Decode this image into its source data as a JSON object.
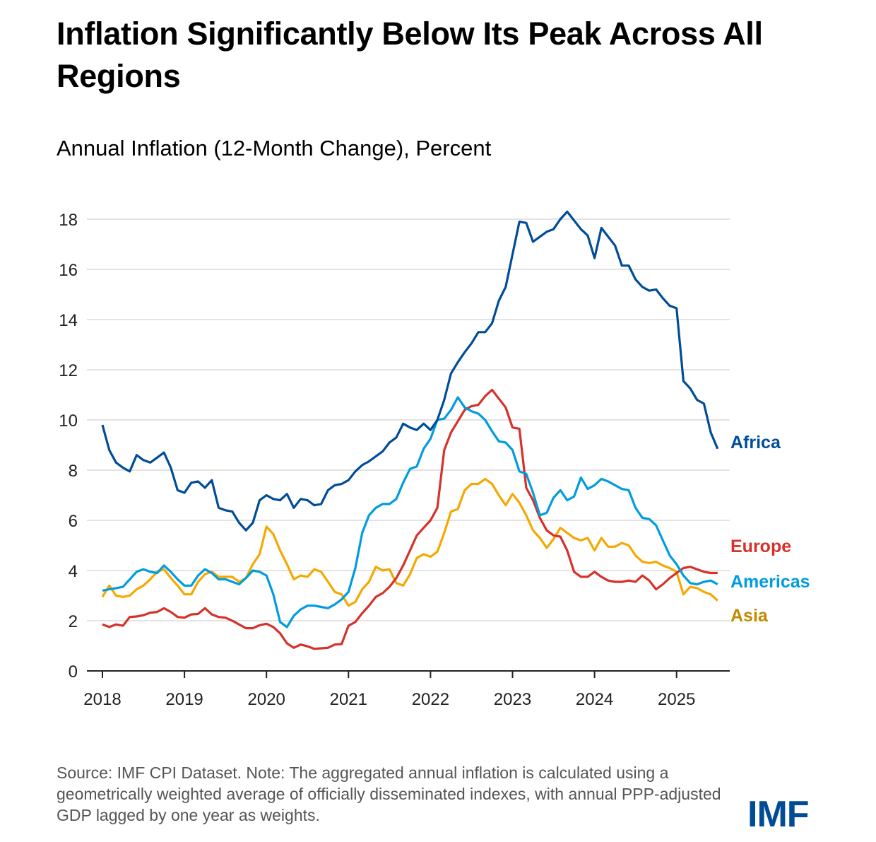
{
  "title": "Inflation Significantly Below Its Peak Across All Regions",
  "subtitle": "Annual Inflation (12-Month Change), Percent",
  "note": "Source: IMF CPI Dataset. Note: The aggregated annual inflation is calculated using a geometrically weighted average of officially disseminated indexes, with annual PPP-adjusted GDP lagged by one year as weights.",
  "logo": "IMF",
  "chart_data": {
    "type": "line",
    "title": "Inflation Significantly Below Its Peak Across All Regions",
    "ylabel": "Annual Inflation (12-Month Change), Percent",
    "x_start": "2018-01",
    "x_end": "2025-07",
    "frequency": "monthly",
    "xticks": [
      "2018",
      "2019",
      "2020",
      "2021",
      "2022",
      "2023",
      "2024",
      "2025"
    ],
    "yticks": [
      0,
      2,
      4,
      6,
      8,
      10,
      12,
      14,
      16,
      18
    ],
    "ylim": [
      0,
      18.5
    ],
    "grid": "horizontal",
    "legend": "direct labels right",
    "series": [
      {
        "name": "Africa",
        "color": "#004C97",
        "values": [
          9.8,
          8.8,
          8.3,
          8.1,
          7.95,
          8.6,
          8.4,
          8.3,
          8.5,
          8.7,
          8.1,
          7.2,
          7.1,
          7.5,
          7.55,
          7.3,
          7.6,
          6.5,
          6.4,
          6.35,
          5.9,
          5.6,
          5.9,
          6.8,
          7.0,
          6.85,
          6.8,
          7.05,
          6.5,
          6.85,
          6.8,
          6.6,
          6.65,
          7.2,
          7.4,
          7.45,
          7.6,
          7.95,
          8.2,
          8.35,
          8.55,
          8.75,
          9.1,
          9.3,
          9.85,
          9.7,
          9.6,
          9.85,
          9.6,
          10.0,
          10.8,
          11.85,
          12.3,
          12.7,
          13.05,
          13.5,
          13.5,
          13.85,
          14.75,
          15.3,
          16.6,
          17.9,
          17.85,
          17.1,
          17.3,
          17.5,
          17.6,
          18.0,
          18.3,
          17.95,
          17.6,
          17.35,
          16.45,
          17.65,
          17.3,
          16.95,
          16.15,
          16.15,
          15.6,
          15.3,
          15.15,
          15.2,
          14.85,
          14.55,
          14.45,
          11.55,
          11.25,
          10.8,
          10.65,
          9.5,
          8.85
        ]
      },
      {
        "name": "Europe",
        "color": "#D6312A",
        "values": [
          1.85,
          1.75,
          1.85,
          1.8,
          2.15,
          2.17,
          2.22,
          2.32,
          2.35,
          2.5,
          2.35,
          2.15,
          2.12,
          2.25,
          2.27,
          2.5,
          2.25,
          2.15,
          2.12,
          2.0,
          1.85,
          1.7,
          1.7,
          1.82,
          1.88,
          1.75,
          1.5,
          1.1,
          0.92,
          1.05,
          0.98,
          0.88,
          0.9,
          0.92,
          1.05,
          1.07,
          1.8,
          1.95,
          2.3,
          2.6,
          2.95,
          3.1,
          3.35,
          3.7,
          4.2,
          4.8,
          5.4,
          5.7,
          6.0,
          6.5,
          8.8,
          9.5,
          9.95,
          10.4,
          10.55,
          10.6,
          10.95,
          11.2,
          10.85,
          10.5,
          9.7,
          9.65,
          7.3,
          6.8,
          6.1,
          5.6,
          5.4,
          5.35,
          4.8,
          3.95,
          3.75,
          3.75,
          3.95,
          3.75,
          3.6,
          3.55,
          3.55,
          3.6,
          3.55,
          3.8,
          3.6,
          3.25,
          3.45,
          3.7,
          3.9,
          4.1,
          4.15,
          4.05,
          3.95,
          3.9,
          3.9
        ]
      },
      {
        "name": "Americas",
        "color": "#009CDE",
        "values": [
          3.2,
          3.25,
          3.3,
          3.35,
          3.65,
          3.95,
          4.05,
          3.95,
          3.9,
          4.2,
          3.95,
          3.65,
          3.4,
          3.4,
          3.8,
          4.05,
          3.9,
          3.65,
          3.65,
          3.55,
          3.45,
          3.7,
          4.0,
          3.95,
          3.8,
          3.05,
          1.95,
          1.75,
          2.2,
          2.45,
          2.6,
          2.6,
          2.55,
          2.5,
          2.65,
          2.85,
          3.15,
          4.1,
          5.5,
          6.2,
          6.5,
          6.65,
          6.65,
          6.85,
          7.5,
          8.05,
          8.15,
          8.85,
          9.25,
          10.0,
          10.05,
          10.4,
          10.9,
          10.5,
          10.35,
          10.25,
          10.0,
          9.55,
          9.15,
          9.1,
          8.8,
          7.95,
          7.85,
          7.1,
          6.2,
          6.3,
          6.9,
          7.2,
          6.8,
          6.95,
          7.7,
          7.25,
          7.4,
          7.65,
          7.55,
          7.4,
          7.25,
          7.2,
          6.5,
          6.1,
          6.05,
          5.8,
          5.2,
          4.6,
          4.25,
          3.8,
          3.5,
          3.45,
          3.55,
          3.6,
          3.45
        ]
      },
      {
        "name": "Asia",
        "color": "#F5A800",
        "label_color": "#C08A00",
        "values": [
          2.95,
          3.4,
          3.0,
          2.95,
          3.0,
          3.25,
          3.4,
          3.65,
          3.95,
          4.05,
          3.7,
          3.4,
          3.05,
          3.05,
          3.55,
          3.85,
          3.95,
          3.75,
          3.75,
          3.75,
          3.55,
          3.7,
          4.25,
          4.65,
          5.75,
          5.45,
          4.8,
          4.25,
          3.65,
          3.8,
          3.75,
          4.05,
          3.95,
          3.55,
          3.15,
          3.05,
          2.6,
          2.75,
          3.25,
          3.55,
          4.15,
          4.0,
          4.05,
          3.5,
          3.4,
          3.85,
          4.5,
          4.65,
          4.55,
          4.75,
          5.5,
          6.35,
          6.45,
          7.2,
          7.45,
          7.45,
          7.65,
          7.45,
          7.0,
          6.6,
          7.05,
          6.7,
          6.2,
          5.6,
          5.3,
          4.9,
          5.25,
          5.7,
          5.5,
          5.3,
          5.2,
          5.3,
          4.8,
          5.3,
          4.95,
          4.95,
          5.1,
          5.0,
          4.6,
          4.35,
          4.3,
          4.35,
          4.2,
          4.1,
          3.95,
          3.05,
          3.35,
          3.3,
          3.15,
          3.05,
          2.8
        ]
      }
    ]
  }
}
